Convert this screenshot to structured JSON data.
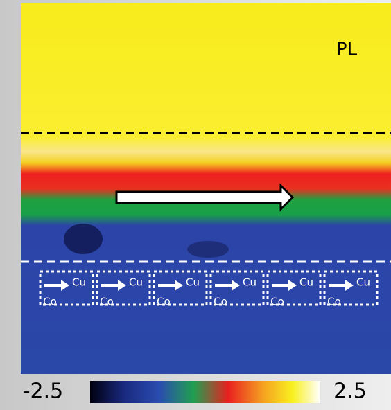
{
  "image": {
    "label": "PL",
    "cells": [
      {
        "top": "Cu",
        "bottom": "Co"
      },
      {
        "top": "Cu",
        "bottom": "Co"
      },
      {
        "top": "Cu",
        "bottom": "Co"
      },
      {
        "top": "Cu",
        "bottom": "Co"
      },
      {
        "top": "Cu",
        "bottom": "Co"
      },
      {
        "top": "Cu",
        "bottom": "Co"
      }
    ]
  },
  "colorbar": {
    "min": -2.5,
    "max": 2.5
  }
}
